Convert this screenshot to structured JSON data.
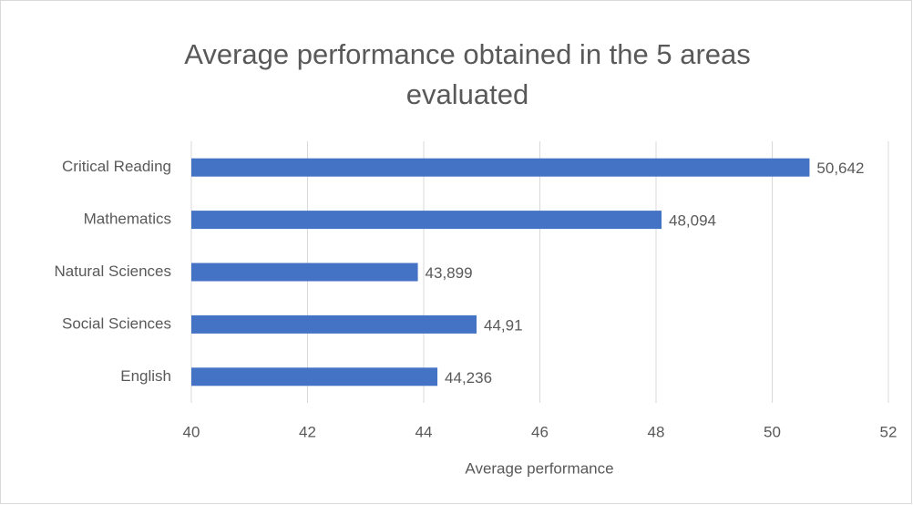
{
  "chart_data": {
    "type": "bar",
    "orientation": "horizontal",
    "title": "Average performance obtained in the 5 areas evaluated",
    "x_label": "Average performance",
    "categories": [
      "Critical Reading",
      "Mathematics",
      "Natural Sciences",
      "Social Sciences",
      "English"
    ],
    "values": [
      50.642,
      48.094,
      43.899,
      44.91,
      44.236
    ],
    "value_labels": [
      "50,642",
      "48,094",
      "43,899",
      "44,91",
      "44,236"
    ],
    "color": "#4472c4",
    "xlim": [
      40,
      52
    ],
    "xticks": [
      40,
      42,
      44,
      46,
      48,
      50,
      52
    ],
    "grid": true
  }
}
